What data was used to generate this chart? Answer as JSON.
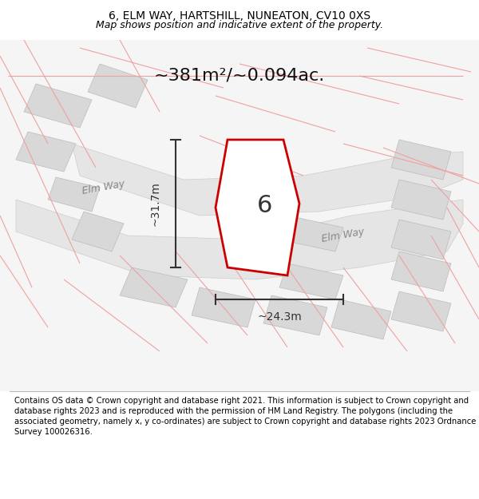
{
  "title": "6, ELM WAY, HARTSHILL, NUNEATON, CV10 0XS",
  "subtitle": "Map shows position and indicative extent of the property.",
  "footer": "Contains OS data © Crown copyright and database right 2021. This information is subject to Crown copyright and database rights 2023 and is reproduced with the permission of HM Land Registry. The polygons (including the associated geometry, namely x, y co-ordinates) are subject to Crown copyright and database rights 2023 Ordnance Survey 100026316.",
  "area_label": "~381m²/~0.094ac.",
  "width_label": "~24.3m",
  "height_label": "~31.7m",
  "house_number": "6",
  "bg_color": "#ffffff",
  "map_bg": "#f5f5f5",
  "road_color": "#e8e8e8",
  "road_stroke": "#d0d0d0",
  "pink_line_color": "#f0a0a0",
  "plot_fill": "#ffffff",
  "plot_stroke": "#cc0000",
  "dim_color": "#333333",
  "title_fontsize": 10,
  "subtitle_fontsize": 9,
  "footer_fontsize": 7.5,
  "map_xlim": [
    0,
    1
  ],
  "map_ylim": [
    0,
    1
  ],
  "road_name_1": "Elm Way",
  "road_name_2": "Elm Way"
}
